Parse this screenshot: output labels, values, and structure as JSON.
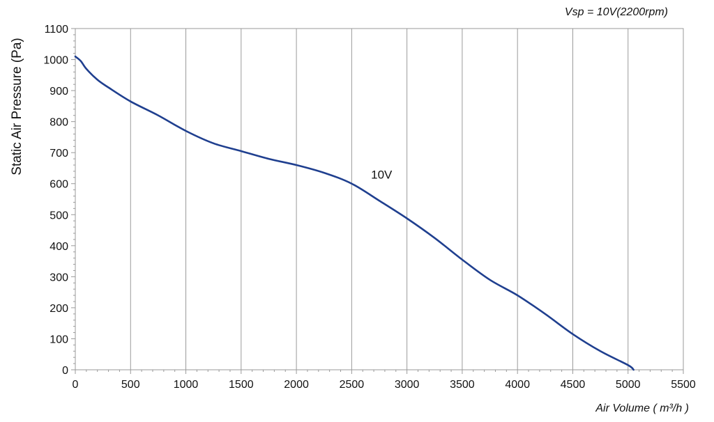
{
  "chart_data": {
    "type": "line",
    "title": "",
    "annotation": "Vsp = 10V(2200rpm)",
    "xlabel": "Air Volume ( m³/h )",
    "ylabel": "Static Air Pressure  (Pa)",
    "xlim": [
      0,
      5500
    ],
    "ylim": [
      0,
      1100
    ],
    "xticks": [
      0,
      500,
      1000,
      1500,
      2000,
      2500,
      3000,
      3500,
      4000,
      4500,
      5000,
      5500
    ],
    "yticks": [
      0,
      100,
      200,
      300,
      400,
      500,
      600,
      700,
      800,
      900,
      1000,
      1100
    ],
    "grid": "vertical",
    "series": [
      {
        "name": "10V",
        "color": "#1f3f8f",
        "x": [
          0,
          50,
          100,
          200,
          300,
          500,
          750,
          1000,
          1250,
          1500,
          1750,
          2000,
          2250,
          2500,
          2750,
          3000,
          3250,
          3500,
          3750,
          4000,
          4250,
          4500,
          4750,
          5000,
          5050
        ],
        "y": [
          1010,
          995,
          970,
          935,
          910,
          865,
          820,
          770,
          730,
          705,
          680,
          660,
          635,
          600,
          545,
          488,
          425,
          355,
          290,
          240,
          180,
          115,
          60,
          15,
          0
        ]
      }
    ]
  }
}
